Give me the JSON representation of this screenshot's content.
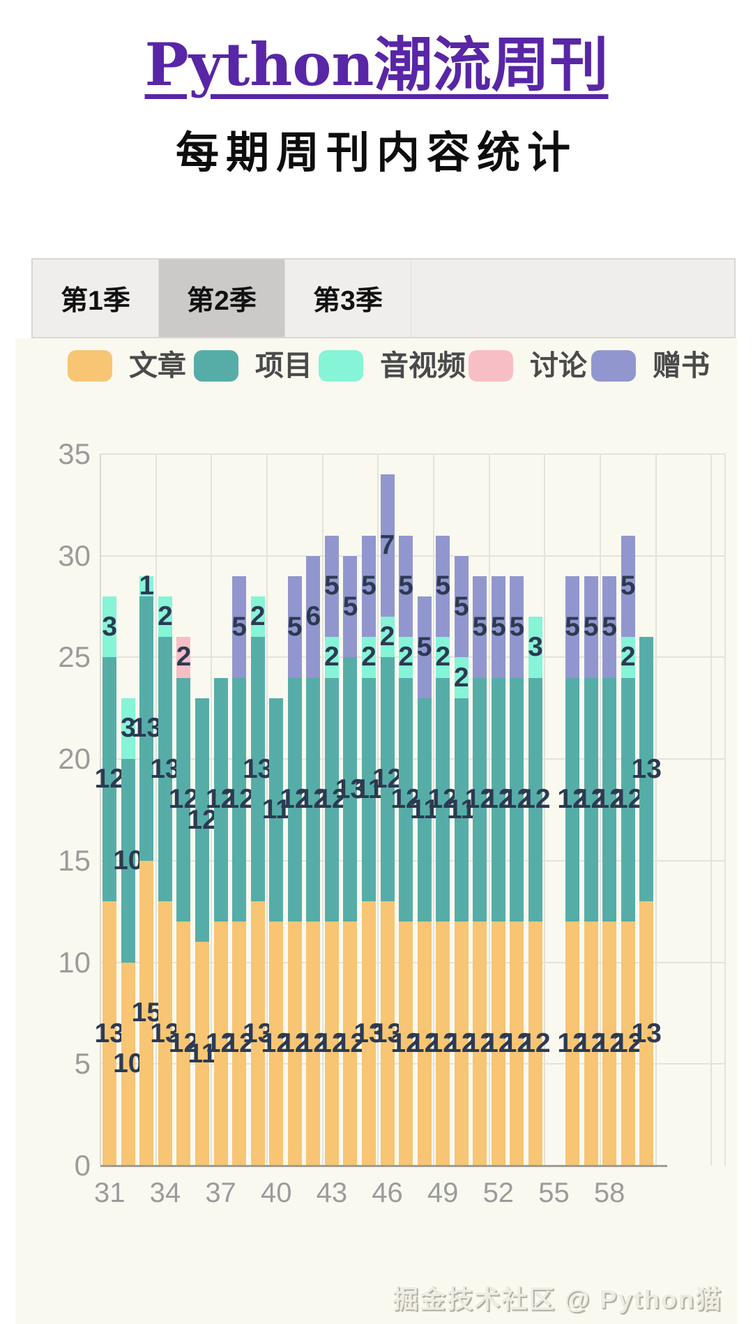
{
  "page": {
    "title": "Python潮流周刊",
    "subtitle": "每期周刊内容统计",
    "watermark": "掘金技术社区 @ Python猫"
  },
  "tabs": [
    {
      "label": "第1季",
      "selected": false
    },
    {
      "label": "第2季",
      "selected": true
    },
    {
      "label": "第3季",
      "selected": false
    }
  ],
  "legend": [
    {
      "label": "文章",
      "color": "#F7C573"
    },
    {
      "label": "项目",
      "color": "#56ADA7"
    },
    {
      "label": "音视频",
      "color": "#85F4D7"
    },
    {
      "label": "讨论",
      "color": "#F8BEC5"
    },
    {
      "label": "赠书",
      "color": "#9197CE"
    }
  ],
  "chart_data": {
    "type": "bar",
    "stacked": true,
    "x": [
      31,
      32,
      33,
      34,
      35,
      36,
      37,
      38,
      39,
      40,
      41,
      42,
      43,
      44,
      45,
      46,
      47,
      48,
      49,
      50,
      51,
      52,
      53,
      54,
      55,
      56,
      57,
      58,
      59,
      60
    ],
    "missing_x": [
      55
    ],
    "x_ticks": [
      31,
      34,
      37,
      40,
      43,
      46,
      49,
      52,
      55,
      58
    ],
    "y_ticks": [
      0,
      5,
      10,
      15,
      20,
      25,
      30,
      35
    ],
    "ylim": [
      0,
      35
    ],
    "grid": true,
    "legend_position": "top",
    "series": [
      {
        "name": "文章",
        "key": "articles",
        "color": "#F7C573",
        "values": [
          13,
          10,
          15,
          13,
          12,
          11,
          12,
          12,
          13,
          12,
          12,
          12,
          12,
          12,
          13,
          13,
          12,
          12,
          12,
          12,
          12,
          12,
          12,
          12,
          null,
          12,
          12,
          12,
          12,
          13
        ]
      },
      {
        "name": "项目",
        "key": "projects",
        "color": "#56ADA7",
        "values": [
          12,
          10,
          13,
          13,
          12,
          12,
          12,
          12,
          13,
          11,
          12,
          12,
          12,
          13,
          11,
          12,
          12,
          11,
          12,
          11,
          12,
          12,
          12,
          12,
          null,
          12,
          12,
          12,
          12,
          13
        ]
      },
      {
        "name": "音视频",
        "key": "audio-video",
        "color": "#85F4D7",
        "values": [
          3,
          3,
          1,
          2,
          0,
          0,
          0,
          0,
          2,
          0,
          0,
          0,
          2,
          0,
          2,
          2,
          2,
          0,
          2,
          2,
          0,
          0,
          0,
          3,
          null,
          0,
          0,
          0,
          2,
          0
        ]
      },
      {
        "name": "讨论",
        "key": "discussion",
        "color": "#F8BEC5",
        "values": [
          0,
          0,
          0,
          0,
          2,
          0,
          0,
          0,
          0,
          0,
          0,
          0,
          0,
          0,
          0,
          0,
          0,
          0,
          0,
          0,
          0,
          0,
          0,
          0,
          null,
          0,
          0,
          0,
          0,
          0
        ]
      },
      {
        "name": "赠书",
        "key": "books",
        "color": "#9197CE",
        "values": [
          0,
          0,
          0,
          0,
          0,
          0,
          0,
          5,
          0,
          0,
          5,
          6,
          5,
          5,
          5,
          7,
          5,
          5,
          5,
          5,
          5,
          5,
          5,
          0,
          null,
          5,
          5,
          5,
          5,
          0
        ]
      }
    ]
  }
}
